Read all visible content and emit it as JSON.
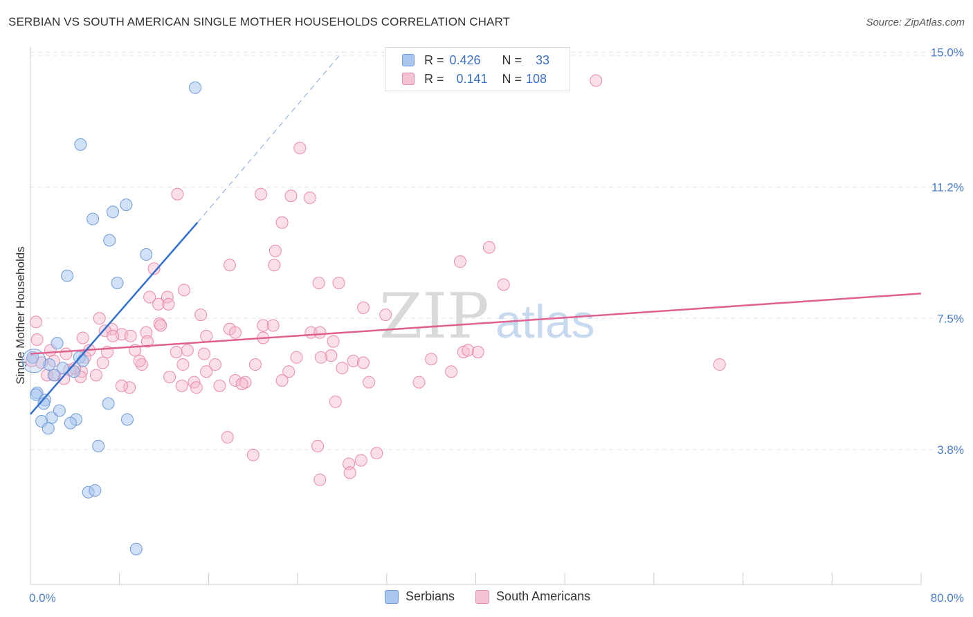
{
  "header": {
    "title": "SERBIAN VS SOUTH AMERICAN SINGLE MOTHER HOUSEHOLDS CORRELATION CHART",
    "source": "Source: ZipAtlas.com"
  },
  "legend": {
    "rows": [
      {
        "r_label": "R =",
        "r_value": "0.426",
        "n_label": "N =",
        "n_value": "33"
      },
      {
        "r_label": "R =",
        "r_value": "0.141",
        "n_label": "N =",
        "n_value": "108"
      }
    ]
  },
  "watermark": {
    "zip": "ZIP",
    "atlas": "atlas"
  },
  "colors": {
    "serbians_fill": "#a9c7ee",
    "serbians_stroke": "#6f9bd8",
    "serbians_line": "#2f6fcf",
    "south_fill": "#f5b8cb",
    "south_stroke": "#e98aa7",
    "south_line": "#e0608f",
    "tick_label": "#4a7cc9",
    "grid": "#e3e3e3"
  },
  "chart_data": {
    "type": "scatter",
    "title": "SERBIAN VS SOUTH AMERICAN SINGLE MOTHER HOUSEHOLDS CORRELATION CHART",
    "xlabel": "",
    "ylabel": "Single Mother Households",
    "xlim": [
      0,
      80
    ],
    "ylim": [
      0,
      15.7
    ],
    "x_tick_labels": [
      {
        "value": 0,
        "label": "0.0%"
      },
      {
        "value": 80,
        "label": "80.0%"
      }
    ],
    "y_ticks": [
      {
        "value": 3.8,
        "label": "3.8%"
      },
      {
        "value": 7.5,
        "label": "7.5%"
      },
      {
        "value": 11.2,
        "label": "11.2%"
      },
      {
        "value": 15.0,
        "label": "15.0%"
      }
    ],
    "grid": true,
    "legend_position": "top-center",
    "series": [
      {
        "name": "Serbians",
        "r": 0.426,
        "n": 33,
        "trend": {
          "x0": 0,
          "y0": 4.8,
          "x1": 15,
          "y1": 10.2,
          "dash_to_x": 28,
          "dash_to_y": 15.0
        },
        "points": [
          [
            14.8,
            14.0
          ],
          [
            4.5,
            12.4
          ],
          [
            5.6,
            10.3
          ],
          [
            7.4,
            10.5
          ],
          [
            8.6,
            10.7
          ],
          [
            7.1,
            9.7
          ],
          [
            10.4,
            9.3
          ],
          [
            3.3,
            8.7
          ],
          [
            7.8,
            8.5
          ],
          [
            0.2,
            6.4
          ],
          [
            2.4,
            6.8
          ],
          [
            4.4,
            6.4
          ],
          [
            4.7,
            6.3
          ],
          [
            2.9,
            6.1
          ],
          [
            3.9,
            6.0
          ],
          [
            2.1,
            5.9
          ],
          [
            0.6,
            5.4
          ],
          [
            0.5,
            5.35
          ],
          [
            1.3,
            5.2
          ],
          [
            1.2,
            5.1
          ],
          [
            7.0,
            5.1
          ],
          [
            2.6,
            4.9
          ],
          [
            1.9,
            4.7
          ],
          [
            1.0,
            4.6
          ],
          [
            4.1,
            4.65
          ],
          [
            3.6,
            4.55
          ],
          [
            8.7,
            4.65
          ],
          [
            1.6,
            4.4
          ],
          [
            6.1,
            3.9
          ],
          [
            5.2,
            2.6
          ],
          [
            5.8,
            2.65
          ],
          [
            9.5,
            1.0
          ],
          [
            1.7,
            6.2
          ]
        ]
      },
      {
        "name": "South Americans",
        "r": 0.141,
        "n": 108,
        "trend": {
          "x0": 0,
          "y0": 6.5,
          "x1": 80,
          "y1": 8.2
        },
        "points": [
          [
            50.8,
            14.2
          ],
          [
            24.2,
            12.3
          ],
          [
            13.2,
            11.0
          ],
          [
            20.7,
            11.0
          ],
          [
            23.4,
            10.95
          ],
          [
            25.1,
            10.9
          ],
          [
            22.6,
            10.2
          ],
          [
            41.2,
            9.5
          ],
          [
            22.0,
            9.4
          ],
          [
            38.6,
            9.1
          ],
          [
            17.9,
            9.0
          ],
          [
            21.9,
            9.0
          ],
          [
            11.1,
            8.9
          ],
          [
            25.9,
            8.5
          ],
          [
            27.7,
            8.5
          ],
          [
            42.5,
            8.45
          ],
          [
            13.8,
            8.3
          ],
          [
            10.7,
            8.1
          ],
          [
            12.3,
            8.1
          ],
          [
            11.5,
            7.9
          ],
          [
            12.4,
            7.9
          ],
          [
            29.9,
            7.8
          ],
          [
            15.3,
            7.6
          ],
          [
            31.9,
            7.6
          ],
          [
            6.2,
            7.5
          ],
          [
            11.6,
            7.35
          ],
          [
            20.9,
            7.3
          ],
          [
            21.8,
            7.3
          ],
          [
            7.3,
            7.2
          ],
          [
            6.7,
            7.15
          ],
          [
            17.9,
            7.2
          ],
          [
            25.2,
            7.1
          ],
          [
            10.4,
            7.1
          ],
          [
            8.2,
            7.05
          ],
          [
            18.4,
            7.1
          ],
          [
            26.0,
            7.1
          ],
          [
            7.4,
            7.0
          ],
          [
            9.0,
            7.0
          ],
          [
            4.7,
            6.95
          ],
          [
            15.8,
            7.0
          ],
          [
            20.9,
            6.95
          ],
          [
            10.5,
            6.85
          ],
          [
            27.2,
            6.85
          ],
          [
            5.3,
            6.6
          ],
          [
            9.4,
            6.6
          ],
          [
            14.1,
            6.6
          ],
          [
            13.1,
            6.55
          ],
          [
            6.9,
            6.55
          ],
          [
            3.2,
            6.5
          ],
          [
            15.6,
            6.5
          ],
          [
            27.0,
            6.45
          ],
          [
            23.9,
            6.4
          ],
          [
            26.1,
            6.4
          ],
          [
            36.0,
            6.35
          ],
          [
            4.9,
            6.4
          ],
          [
            2.1,
            6.3
          ],
          [
            0.1,
            6.3
          ],
          [
            29.0,
            6.3
          ],
          [
            29.9,
            6.25
          ],
          [
            6.5,
            6.25
          ],
          [
            10.0,
            6.2
          ],
          [
            13.7,
            6.2
          ],
          [
            16.6,
            6.2
          ],
          [
            20.2,
            6.2
          ],
          [
            61.9,
            6.2
          ],
          [
            28.0,
            6.1
          ],
          [
            3.5,
            6.05
          ],
          [
            4.6,
            6.0
          ],
          [
            23.2,
            6.0
          ],
          [
            15.8,
            6.0
          ],
          [
            37.8,
            6.0
          ],
          [
            1.5,
            5.9
          ],
          [
            12.5,
            5.85
          ],
          [
            5.9,
            5.9
          ],
          [
            4.5,
            5.85
          ],
          [
            18.4,
            5.75
          ],
          [
            19.3,
            5.7
          ],
          [
            14.7,
            5.7
          ],
          [
            22.6,
            5.75
          ],
          [
            30.4,
            5.7
          ],
          [
            34.9,
            5.7
          ],
          [
            17.0,
            5.6
          ],
          [
            19.0,
            5.65
          ],
          [
            14.9,
            5.55
          ],
          [
            8.9,
            5.55
          ],
          [
            8.2,
            5.6
          ],
          [
            27.4,
            5.15
          ],
          [
            17.7,
            4.15
          ],
          [
            20.0,
            3.65
          ],
          [
            25.8,
            3.9
          ],
          [
            29.7,
            3.5
          ],
          [
            31.1,
            3.7
          ],
          [
            28.6,
            3.4
          ],
          [
            28.7,
            3.15
          ],
          [
            26.0,
            2.95
          ],
          [
            0.5,
            7.4
          ],
          [
            0.6,
            6.9
          ],
          [
            1.0,
            6.25
          ],
          [
            2.2,
            5.9
          ],
          [
            3.0,
            5.8
          ],
          [
            4.0,
            6.1
          ],
          [
            1.8,
            6.6
          ],
          [
            38.9,
            6.55
          ],
          [
            39.3,
            6.6
          ],
          [
            40.2,
            6.55
          ],
          [
            9.8,
            6.3
          ],
          [
            13.6,
            5.6
          ],
          [
            11.7,
            7.3
          ]
        ]
      }
    ]
  },
  "bottom_legend": {
    "series_1": "Serbians",
    "series_2": "South Americans"
  }
}
